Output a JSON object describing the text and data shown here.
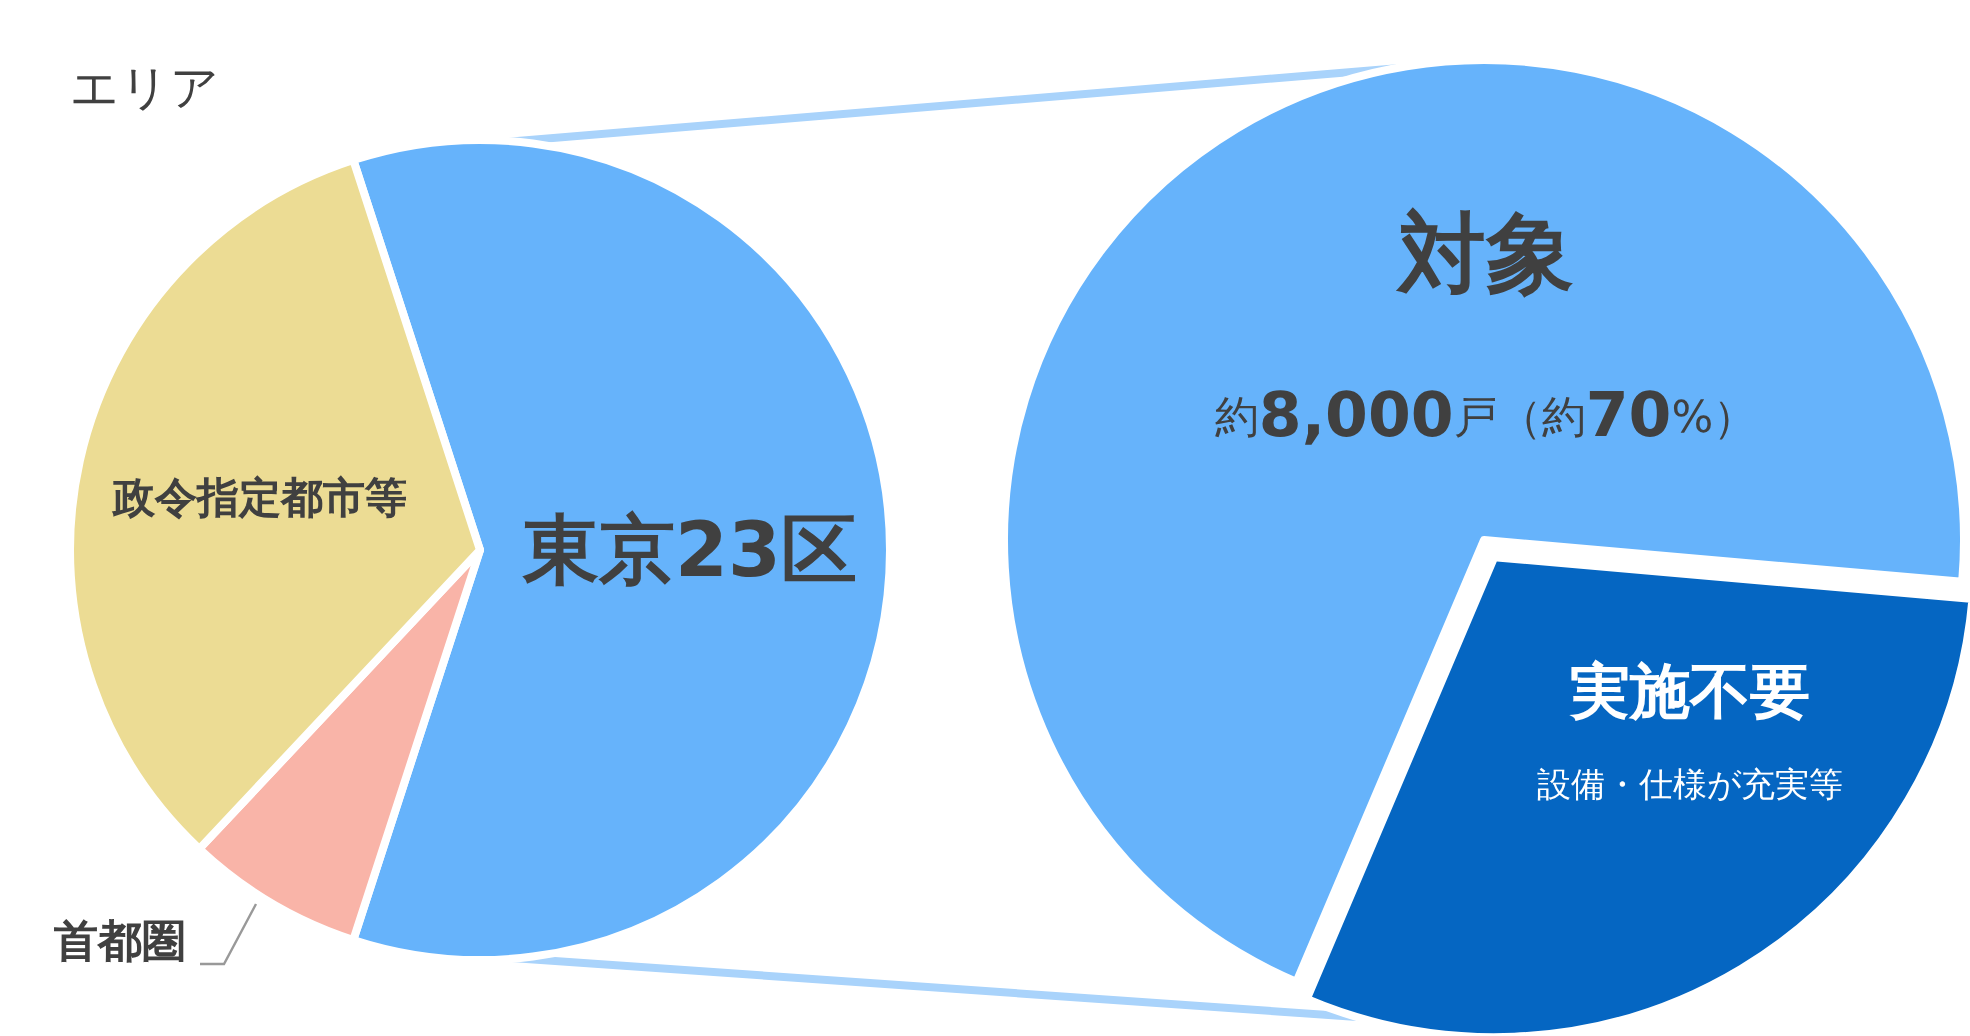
{
  "chart_data": [
    {
      "type": "pie",
      "title": "エリア",
      "categories": [
        "東京23区",
        "首都圏",
        "政令指定都市等"
      ],
      "values": [
        60,
        7,
        33
      ],
      "colors": [
        "#66b3fb",
        "#f9b4a8",
        "#ecdc94"
      ]
    },
    {
      "type": "pie",
      "categories": [
        "対象",
        "実施不要"
      ],
      "values": [
        70,
        30
      ],
      "colors": [
        "#66b3fb",
        "#0566c2"
      ],
      "annotations": [
        "約**8,000**戸（約**70**%）",
        "設備・仕様が充実等"
      ]
    }
  ]
}
